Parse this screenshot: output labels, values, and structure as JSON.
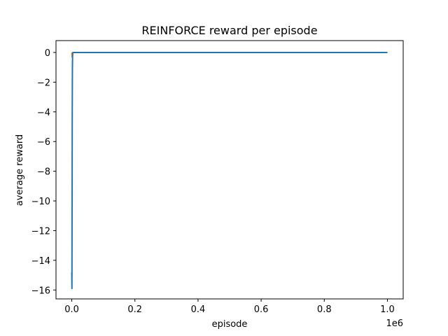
{
  "chart_data": {
    "type": "line",
    "title": "REINFORCE reward per episode",
    "xlabel": "episode",
    "ylabel": "average reward",
    "x_offset_text": "1e6",
    "xlim": [
      -50000,
      1050000
    ],
    "ylim": [
      -16.6,
      0.8
    ],
    "x_ticks": [
      0,
      200000,
      400000,
      600000,
      800000,
      1000000
    ],
    "x_tick_labels": [
      "0.0",
      "0.2",
      "0.4",
      "0.6",
      "0.8",
      "1.0"
    ],
    "y_ticks": [
      0,
      -2,
      -4,
      -6,
      -8,
      -10,
      -12,
      -14,
      -16
    ],
    "y_tick_labels": [
      "0",
      "−2",
      "−4",
      "−6",
      "−8",
      "−10",
      "−12",
      "−14",
      "−16"
    ],
    "grid": false,
    "series": [
      {
        "color": "#ff7f0e",
        "x": [
          0,
          1000,
          2000,
          3000,
          1000000
        ],
        "y": [
          0,
          -0.3,
          -0.05,
          0,
          0
        ]
      },
      {
        "color": "#1f77b4",
        "x": [
          0,
          500,
          1000,
          1500,
          2000,
          2500,
          3000,
          4000,
          6000,
          10000,
          1000000
        ],
        "y": [
          -14.8,
          -15.9,
          -10.0,
          -4.0,
          -1.0,
          -0.3,
          -0.05,
          0,
          0,
          0,
          0
        ]
      }
    ]
  }
}
